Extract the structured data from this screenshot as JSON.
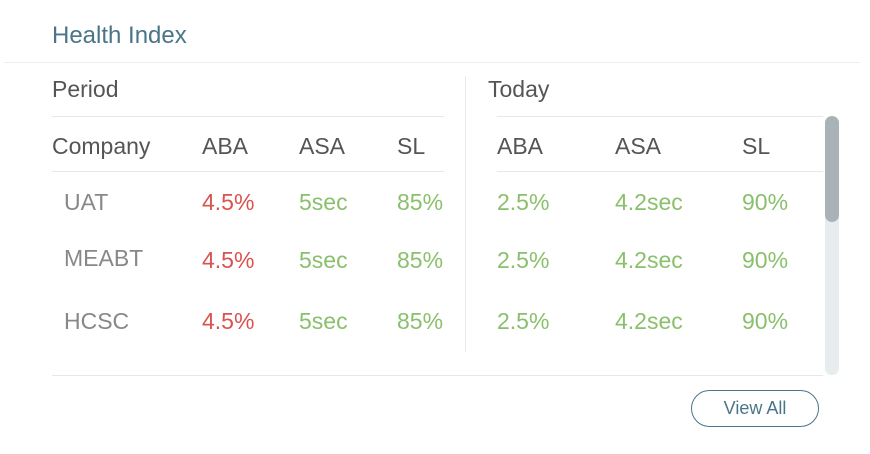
{
  "title": "Health Index",
  "period": {
    "label": "Period",
    "headers": [
      "Company",
      "ABA",
      "ASA",
      "SL"
    ]
  },
  "today": {
    "label": "Today",
    "headers": [
      "ABA",
      "ASA",
      "SL"
    ]
  },
  "rows": [
    {
      "company": "UAT",
      "period_aba": "4.5%",
      "period_asa": "5sec",
      "period_sl": "85%",
      "today_aba": "2.5%",
      "today_asa": "4.2sec",
      "today_sl": "90%"
    },
    {
      "company": "MEABT",
      "period_aba": "4.5%",
      "period_asa": "5sec",
      "period_sl": "85%",
      "today_aba": "2.5%",
      "today_asa": "4.2sec",
      "today_sl": "90%"
    },
    {
      "company": "HCSC",
      "period_aba": "4.5%",
      "period_asa": "5sec",
      "period_sl": "85%",
      "today_aba": "2.5%",
      "today_asa": "4.2sec",
      "today_sl": "90%"
    }
  ],
  "view_all_label": "View All",
  "colors": {
    "accent": "#4a7589",
    "bad": "#d9534f",
    "good": "#8ac06c"
  }
}
